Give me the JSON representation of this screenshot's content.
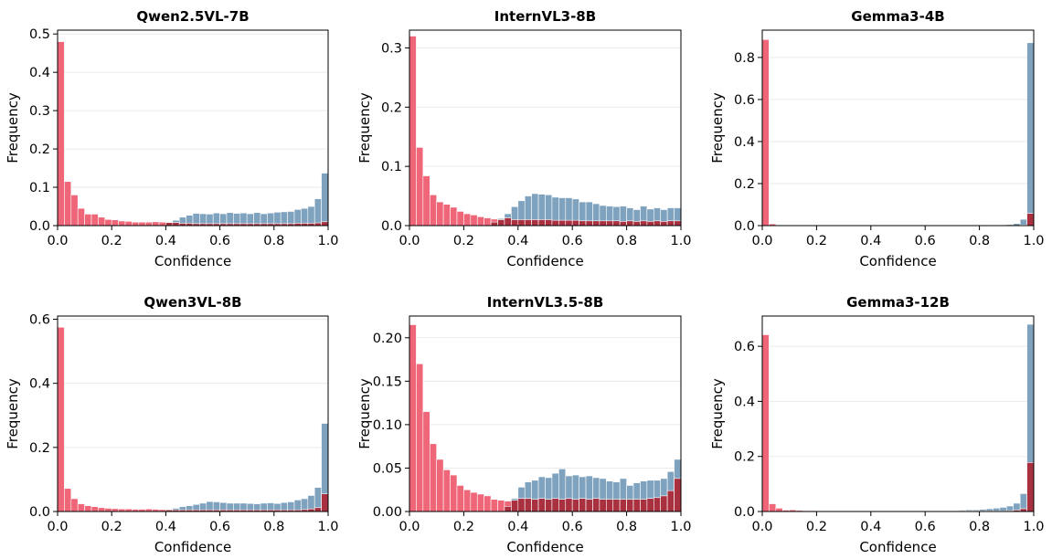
{
  "colors": {
    "blue": "#7fa3bf",
    "red": "#ee6677",
    "overlap": "#a9303f",
    "grid": "#eaeaea"
  },
  "chart_data": [
    {
      "type": "bar",
      "title": "Qwen2.5VL-7B",
      "xlabel": "Confidence",
      "ylabel": "Frequency",
      "xlim": [
        0,
        1
      ],
      "ylim": [
        0,
        0.51
      ],
      "yticks": [
        0.0,
        0.1,
        0.2,
        0.3,
        0.4,
        0.5
      ],
      "ytick_labels": [
        "0.0",
        "0.1",
        "0.2",
        "0.3",
        "0.4",
        "0.5"
      ],
      "xticks": [
        0.0,
        0.2,
        0.4,
        0.6,
        0.8,
        1.0
      ],
      "xtick_labels": [
        "0.0",
        "0.2",
        "0.4",
        "0.6",
        "0.8",
        "1.0"
      ],
      "bins": 40,
      "grid": "horizontal",
      "series": [
        {
          "color": "blue",
          "values": [
            0.0,
            0.0,
            0.0,
            0.0,
            0.0,
            0.0,
            0.0,
            0.0,
            0.0,
            0.0,
            0.0,
            0.0,
            0.0,
            0.0,
            0.0,
            0.0,
            0.008,
            0.014,
            0.022,
            0.027,
            0.032,
            0.031,
            0.03,
            0.033,
            0.031,
            0.034,
            0.032,
            0.033,
            0.031,
            0.034,
            0.031,
            0.033,
            0.035,
            0.036,
            0.037,
            0.042,
            0.045,
            0.05,
            0.07,
            0.137
          ]
        },
        {
          "color": "red",
          "values": [
            0.48,
            0.115,
            0.08,
            0.045,
            0.03,
            0.03,
            0.022,
            0.016,
            0.015,
            0.012,
            0.011,
            0.009,
            0.009,
            0.009,
            0.01,
            0.009,
            0.008,
            0.008,
            0.006,
            0.006,
            0.005,
            0.005,
            0.005,
            0.005,
            0.005,
            0.005,
            0.005,
            0.005,
            0.005,
            0.005,
            0.005,
            0.005,
            0.005,
            0.005,
            0.005,
            0.006,
            0.006,
            0.006,
            0.007,
            0.01
          ]
        }
      ]
    },
    {
      "type": "bar",
      "title": "InternVL3-8B",
      "xlabel": "Confidence",
      "ylabel": "Frequency",
      "xlim": [
        0,
        1
      ],
      "ylim": [
        0,
        0.33
      ],
      "yticks": [
        0.0,
        0.1,
        0.2,
        0.3
      ],
      "ytick_labels": [
        "0.0",
        "0.1",
        "0.2",
        "0.3"
      ],
      "xticks": [
        0.0,
        0.2,
        0.4,
        0.6,
        0.8,
        1.0
      ],
      "xtick_labels": [
        "0.0",
        "0.2",
        "0.4",
        "0.6",
        "0.8",
        "1.0"
      ],
      "bins": 40,
      "grid": "horizontal",
      "series": [
        {
          "color": "blue",
          "values": [
            0.0,
            0.0,
            0.0,
            0.0,
            0.0,
            0.0,
            0.0,
            0.0,
            0.0,
            0.0,
            0.0,
            0.0,
            0.006,
            0.012,
            0.02,
            0.032,
            0.042,
            0.05,
            0.054,
            0.053,
            0.052,
            0.048,
            0.047,
            0.047,
            0.045,
            0.04,
            0.04,
            0.037,
            0.034,
            0.033,
            0.032,
            0.033,
            0.03,
            0.027,
            0.033,
            0.028,
            0.03,
            0.027,
            0.03,
            0.03
          ]
        },
        {
          "color": "red",
          "values": [
            0.32,
            0.132,
            0.084,
            0.052,
            0.04,
            0.036,
            0.031,
            0.024,
            0.02,
            0.018,
            0.015,
            0.013,
            0.011,
            0.01,
            0.013,
            0.01,
            0.01,
            0.01,
            0.01,
            0.01,
            0.01,
            0.009,
            0.009,
            0.009,
            0.009,
            0.008,
            0.008,
            0.008,
            0.008,
            0.008,
            0.008,
            0.007,
            0.008,
            0.007,
            0.008,
            0.007,
            0.008,
            0.007,
            0.008,
            0.008
          ]
        }
      ]
    },
    {
      "type": "bar",
      "title": "Gemma3-4B",
      "xlabel": "Confidence",
      "ylabel": "Frequency",
      "xlim": [
        0,
        1
      ],
      "ylim": [
        0,
        0.93
      ],
      "yticks": [
        0.0,
        0.2,
        0.4,
        0.6,
        0.8
      ],
      "ytick_labels": [
        "0.0",
        "0.2",
        "0.4",
        "0.6",
        "0.8"
      ],
      "xticks": [
        0.0,
        0.2,
        0.4,
        0.6,
        0.8,
        1.0
      ],
      "xtick_labels": [
        "0.0",
        "0.2",
        "0.4",
        "0.6",
        "0.8",
        "1.0"
      ],
      "bins": 40,
      "grid": "horizontal",
      "series": [
        {
          "color": "blue",
          "values": [
            0.0,
            0.0,
            0.0,
            0.0,
            0.0,
            0.0,
            0.0,
            0.0,
            0.0,
            0.0,
            0.0,
            0.0,
            0.0,
            0.0,
            0.0,
            0.0,
            0.0,
            0.0,
            0.0,
            0.0,
            0.0,
            0.0,
            0.003,
            0.0,
            0.0,
            0.0,
            0.0,
            0.003,
            0.0,
            0.0,
            0.0,
            0.0,
            0.0,
            0.0,
            0.0,
            0.0,
            0.005,
            0.01,
            0.03,
            0.87
          ]
        },
        {
          "color": "red",
          "values": [
            0.885,
            0.008,
            0.002,
            0.0,
            0.0,
            0.0,
            0.0,
            0.0,
            0.0,
            0.0,
            0.0,
            0.0,
            0.0,
            0.0,
            0.0,
            0.0,
            0.0,
            0.0,
            0.0,
            0.0,
            0.0,
            0.0,
            0.0,
            0.0,
            0.0,
            0.0,
            0.0,
            0.0,
            0.0,
            0.0,
            0.0,
            0.0,
            0.0,
            0.0,
            0.0,
            0.0,
            0.0,
            0.0,
            0.003,
            0.058
          ]
        }
      ]
    },
    {
      "type": "bar",
      "title": "Qwen3VL-8B",
      "xlabel": "Confidence",
      "ylabel": "Frequency",
      "xlim": [
        0,
        1
      ],
      "ylim": [
        0,
        0.61
      ],
      "yticks": [
        0.0,
        0.2,
        0.4,
        0.6
      ],
      "ytick_labels": [
        "0.0",
        "0.2",
        "0.4",
        "0.6"
      ],
      "xticks": [
        0.0,
        0.2,
        0.4,
        0.6,
        0.8,
        1.0
      ],
      "xtick_labels": [
        "0.0",
        "0.2",
        "0.4",
        "0.6",
        "0.8",
        "1.0"
      ],
      "bins": 40,
      "grid": "horizontal",
      "series": [
        {
          "color": "blue",
          "values": [
            0.0,
            0.0,
            0.0,
            0.0,
            0.0,
            0.0,
            0.0,
            0.0,
            0.0,
            0.0,
            0.0,
            0.0,
            0.0,
            0.0,
            0.0,
            0.0,
            0.006,
            0.01,
            0.015,
            0.018,
            0.022,
            0.026,
            0.031,
            0.03,
            0.028,
            0.026,
            0.026,
            0.026,
            0.025,
            0.024,
            0.026,
            0.027,
            0.025,
            0.028,
            0.03,
            0.036,
            0.04,
            0.05,
            0.075,
            0.275
          ]
        },
        {
          "color": "red",
          "values": [
            0.575,
            0.072,
            0.04,
            0.024,
            0.018,
            0.015,
            0.012,
            0.01,
            0.009,
            0.008,
            0.008,
            0.007,
            0.007,
            0.008,
            0.007,
            0.006,
            0.005,
            0.005,
            0.005,
            0.005,
            0.005,
            0.005,
            0.005,
            0.005,
            0.005,
            0.005,
            0.005,
            0.005,
            0.005,
            0.005,
            0.005,
            0.005,
            0.005,
            0.005,
            0.005,
            0.005,
            0.006,
            0.008,
            0.012,
            0.055
          ]
        }
      ]
    },
    {
      "type": "bar",
      "title": "InternVL3.5-8B",
      "xlabel": "Confidence",
      "ylabel": "Frequency",
      "xlim": [
        0,
        1
      ],
      "ylim": [
        0,
        0.225
      ],
      "yticks": [
        0.0,
        0.05,
        0.1,
        0.15,
        0.2
      ],
      "ytick_labels": [
        "0.00",
        "0.05",
        "0.10",
        "0.15",
        "0.20"
      ],
      "xticks": [
        0.0,
        0.2,
        0.4,
        0.6,
        0.8,
        1.0
      ],
      "xtick_labels": [
        "0.0",
        "0.2",
        "0.4",
        "0.6",
        "0.8",
        "1.0"
      ],
      "bins": 40,
      "grid": "horizontal",
      "series": [
        {
          "color": "blue",
          "values": [
            0.0,
            0.0,
            0.0,
            0.0,
            0.0,
            0.0,
            0.0,
            0.0,
            0.0,
            0.0,
            0.0,
            0.0,
            0.0,
            0.0,
            0.006,
            0.015,
            0.028,
            0.034,
            0.036,
            0.04,
            0.039,
            0.044,
            0.049,
            0.041,
            0.042,
            0.04,
            0.041,
            0.039,
            0.038,
            0.035,
            0.034,
            0.038,
            0.03,
            0.033,
            0.035,
            0.036,
            0.036,
            0.038,
            0.046,
            0.06
          ]
        },
        {
          "color": "red",
          "values": [
            0.215,
            0.17,
            0.115,
            0.078,
            0.06,
            0.048,
            0.042,
            0.03,
            0.025,
            0.022,
            0.02,
            0.018,
            0.014,
            0.013,
            0.012,
            0.013,
            0.015,
            0.015,
            0.014,
            0.015,
            0.014,
            0.015,
            0.014,
            0.015,
            0.014,
            0.015,
            0.014,
            0.015,
            0.014,
            0.014,
            0.014,
            0.014,
            0.014,
            0.014,
            0.014,
            0.015,
            0.016,
            0.018,
            0.024,
            0.038
          ]
        }
      ]
    },
    {
      "type": "bar",
      "title": "Gemma3-12B",
      "xlabel": "Confidence",
      "ylabel": "Frequency",
      "xlim": [
        0,
        1
      ],
      "ylim": [
        0,
        0.71
      ],
      "yticks": [
        0.0,
        0.2,
        0.4,
        0.6
      ],
      "ytick_labels": [
        "0.0",
        "0.2",
        "0.4",
        "0.6"
      ],
      "xticks": [
        0.0,
        0.2,
        0.4,
        0.6,
        0.8,
        1.0
      ],
      "xtick_labels": [
        "0.0",
        "0.2",
        "0.4",
        "0.6",
        "0.8",
        "1.0"
      ],
      "bins": 40,
      "grid": "horizontal",
      "series": [
        {
          "color": "blue",
          "values": [
            0.0,
            0.0,
            0.0,
            0.0,
            0.0,
            0.0,
            0.0,
            0.0,
            0.0,
            0.0,
            0.0,
            0.0,
            0.0,
            0.0,
            0.0,
            0.0,
            0.0,
            0.0,
            0.0,
            0.003,
            0.0,
            0.0,
            0.0,
            0.0,
            0.0,
            0.0,
            0.0,
            0.0,
            0.003,
            0.005,
            0.006,
            0.006,
            0.008,
            0.01,
            0.012,
            0.015,
            0.02,
            0.03,
            0.065,
            0.68
          ]
        },
        {
          "color": "red",
          "values": [
            0.642,
            0.028,
            0.012,
            0.005,
            0.006,
            0.004,
            0.003,
            0.003,
            0.002,
            0.002,
            0.002,
            0.002,
            0.002,
            0.002,
            0.002,
            0.002,
            0.002,
            0.002,
            0.002,
            0.002,
            0.002,
            0.002,
            0.002,
            0.002,
            0.002,
            0.002,
            0.002,
            0.002,
            0.002,
            0.002,
            0.002,
            0.002,
            0.002,
            0.002,
            0.002,
            0.002,
            0.003,
            0.005,
            0.01,
            0.178
          ]
        }
      ]
    }
  ]
}
